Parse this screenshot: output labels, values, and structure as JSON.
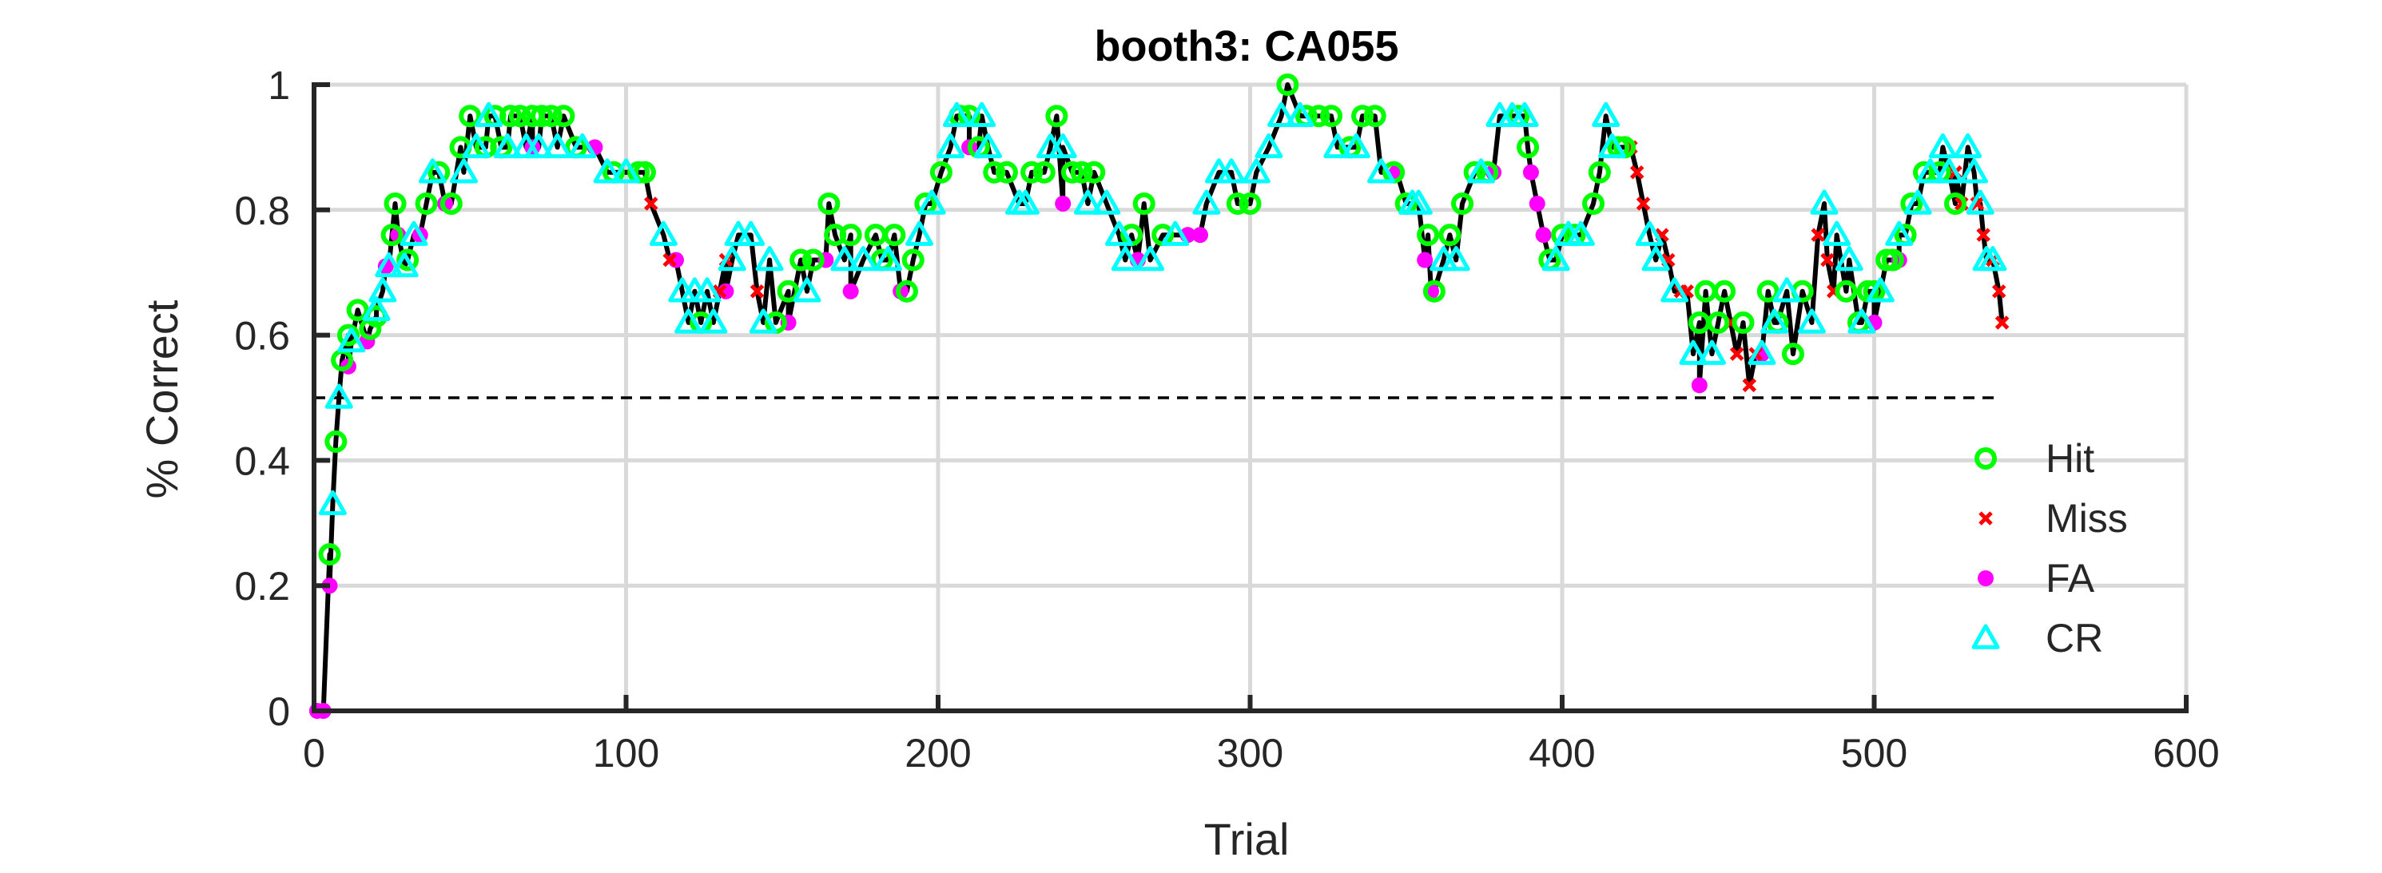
{
  "chart_data": {
    "type": "line",
    "title": "booth3: CA055",
    "xlabel": "Trial",
    "ylabel": "% Correct",
    "xlim": [
      0,
      600
    ],
    "ylim": [
      0,
      1
    ],
    "xticks": [
      0,
      100,
      200,
      300,
      400,
      500,
      600
    ],
    "xtick_labels": [
      "0",
      "100",
      "200",
      "300",
      "400",
      "500",
      "600"
    ],
    "yticks": [
      0,
      0.2,
      0.4,
      0.6,
      0.8,
      1
    ],
    "ytick_labels": [
      "0",
      "0.2",
      "0.4",
      "0.6",
      "0.8",
      "1"
    ],
    "grid": true,
    "legend_position": "lower-right",
    "reference_line": {
      "y": 0.5,
      "x_range": [
        0,
        540
      ],
      "style": "dashed"
    },
    "colors": {
      "line": "#000000",
      "hit": "#00ff00",
      "miss": "#ff0000",
      "fa": "#ff00ff",
      "cr": "#00ffff",
      "axis": "#262626",
      "grid": "#d9d9d9"
    },
    "series": [
      {
        "name": "Hit",
        "marker": "circle",
        "points": [
          [
            5,
            0.25
          ],
          [
            7,
            0.43
          ],
          [
            9,
            0.56
          ],
          [
            11,
            0.6
          ],
          [
            14,
            0.64
          ],
          [
            18,
            0.61
          ],
          [
            20,
            0.63
          ],
          [
            25,
            0.76
          ],
          [
            26,
            0.81
          ],
          [
            30,
            0.72
          ],
          [
            36,
            0.81
          ],
          [
            40,
            0.86
          ],
          [
            44,
            0.81
          ],
          [
            47,
            0.9
          ],
          [
            50,
            0.95
          ],
          [
            55,
            0.9
          ],
          [
            58,
            0.95
          ],
          [
            60,
            0.9
          ],
          [
            63,
            0.95
          ],
          [
            66,
            0.95
          ],
          [
            70,
            0.95
          ],
          [
            73,
            0.95
          ],
          [
            76,
            0.95
          ],
          [
            80,
            0.95
          ],
          [
            84,
            0.9
          ],
          [
            96,
            0.86
          ],
          [
            104,
            0.86
          ],
          [
            106,
            0.86
          ],
          [
            124,
            0.62
          ],
          [
            148,
            0.62
          ],
          [
            152,
            0.67
          ],
          [
            156,
            0.72
          ],
          [
            160,
            0.72
          ],
          [
            165,
            0.81
          ],
          [
            167,
            0.76
          ],
          [
            172,
            0.76
          ],
          [
            180,
            0.76
          ],
          [
            182,
            0.72
          ],
          [
            186,
            0.76
          ],
          [
            190,
            0.67
          ],
          [
            192,
            0.72
          ],
          [
            196,
            0.81
          ],
          [
            201,
            0.86
          ],
          [
            207,
            0.95
          ],
          [
            210,
            0.95
          ],
          [
            213,
            0.9
          ],
          [
            218,
            0.86
          ],
          [
            222,
            0.86
          ],
          [
            230,
            0.86
          ],
          [
            234,
            0.86
          ],
          [
            238,
            0.95
          ],
          [
            243,
            0.86
          ],
          [
            246,
            0.86
          ],
          [
            250,
            0.86
          ],
          [
            262,
            0.76
          ],
          [
            266,
            0.81
          ],
          [
            272,
            0.76
          ],
          [
            296,
            0.81
          ],
          [
            300,
            0.81
          ],
          [
            312,
            1.0
          ],
          [
            318,
            0.95
          ],
          [
            322,
            0.95
          ],
          [
            326,
            0.95
          ],
          [
            332,
            0.9
          ],
          [
            336,
            0.95
          ],
          [
            340,
            0.95
          ],
          [
            346,
            0.86
          ],
          [
            350,
            0.81
          ],
          [
            357,
            0.76
          ],
          [
            359,
            0.67
          ],
          [
            364,
            0.76
          ],
          [
            368,
            0.81
          ],
          [
            372,
            0.86
          ],
          [
            376,
            0.86
          ],
          [
            386,
            0.95
          ],
          [
            389,
            0.9
          ],
          [
            396,
            0.72
          ],
          [
            400,
            0.76
          ],
          [
            404,
            0.76
          ],
          [
            410,
            0.81
          ],
          [
            412,
            0.86
          ],
          [
            418,
            0.9
          ],
          [
            420,
            0.9
          ],
          [
            444,
            0.62
          ],
          [
            446,
            0.67
          ],
          [
            450,
            0.62
          ],
          [
            452,
            0.67
          ],
          [
            458,
            0.62
          ],
          [
            466,
            0.67
          ],
          [
            469,
            0.62
          ],
          [
            474,
            0.57
          ],
          [
            477,
            0.67
          ],
          [
            491,
            0.67
          ],
          [
            495,
            0.62
          ],
          [
            498,
            0.67
          ],
          [
            500,
            0.67
          ],
          [
            504,
            0.72
          ],
          [
            506,
            0.72
          ],
          [
            510,
            0.76
          ],
          [
            512,
            0.81
          ],
          [
            516,
            0.86
          ],
          [
            521,
            0.86
          ],
          [
            526,
            0.81
          ]
        ]
      },
      {
        "name": "Miss",
        "marker": "x",
        "points": [
          [
            108,
            0.81
          ],
          [
            114,
            0.72
          ],
          [
            130,
            0.67
          ],
          [
            132,
            0.72
          ],
          [
            142,
            0.67
          ],
          [
            422,
            0.9
          ],
          [
            424,
            0.86
          ],
          [
            426,
            0.81
          ],
          [
            432,
            0.76
          ],
          [
            434,
            0.72
          ],
          [
            438,
            0.67
          ],
          [
            440,
            0.67
          ],
          [
            454,
            0.62
          ],
          [
            456,
            0.57
          ],
          [
            460,
            0.52
          ],
          [
            462,
            0.57
          ],
          [
            482,
            0.76
          ],
          [
            485,
            0.72
          ],
          [
            487,
            0.67
          ],
          [
            526,
            0.86
          ],
          [
            528,
            0.81
          ],
          [
            533,
            0.81
          ],
          [
            535,
            0.76
          ],
          [
            538,
            0.72
          ],
          [
            540,
            0.67
          ],
          [
            541,
            0.62
          ]
        ]
      },
      {
        "name": "FA",
        "marker": "dot",
        "points": [
          [
            1,
            0.0
          ],
          [
            3,
            0.0
          ],
          [
            5,
            0.2
          ],
          [
            11,
            0.55
          ],
          [
            17,
            0.59
          ],
          [
            23,
            0.71
          ],
          [
            27,
            0.76
          ],
          [
            34,
            0.76
          ],
          [
            42,
            0.81
          ],
          [
            70,
            0.9
          ],
          [
            90,
            0.9
          ],
          [
            116,
            0.72
          ],
          [
            132,
            0.67
          ],
          [
            152,
            0.62
          ],
          [
            164,
            0.72
          ],
          [
            172,
            0.67
          ],
          [
            188,
            0.67
          ],
          [
            210,
            0.9
          ],
          [
            240,
            0.81
          ],
          [
            264,
            0.72
          ],
          [
            280,
            0.76
          ],
          [
            284,
            0.76
          ],
          [
            347,
            0.86
          ],
          [
            356,
            0.72
          ],
          [
            358,
            0.67
          ],
          [
            378,
            0.86
          ],
          [
            390,
            0.86
          ],
          [
            392,
            0.81
          ],
          [
            394,
            0.76
          ],
          [
            444,
            0.52
          ],
          [
            464,
            0.57
          ],
          [
            500,
            0.62
          ],
          [
            508,
            0.72
          ]
        ]
      },
      {
        "name": "CR",
        "marker": "triangle",
        "points": [
          [
            6,
            0.33
          ],
          [
            8,
            0.5
          ],
          [
            12,
            0.59
          ],
          [
            20,
            0.64
          ],
          [
            22,
            0.67
          ],
          [
            24,
            0.71
          ],
          [
            29,
            0.71
          ],
          [
            32,
            0.76
          ],
          [
            38,
            0.86
          ],
          [
            48,
            0.86
          ],
          [
            52,
            0.9
          ],
          [
            56,
            0.95
          ],
          [
            62,
            0.9
          ],
          [
            68,
            0.9
          ],
          [
            72,
            0.9
          ],
          [
            78,
            0.9
          ],
          [
            86,
            0.9
          ],
          [
            94,
            0.86
          ],
          [
            100,
            0.86
          ],
          [
            112,
            0.76
          ],
          [
            118,
            0.67
          ],
          [
            120,
            0.62
          ],
          [
            122,
            0.67
          ],
          [
            126,
            0.67
          ],
          [
            128,
            0.62
          ],
          [
            134,
            0.72
          ],
          [
            136,
            0.76
          ],
          [
            140,
            0.76
          ],
          [
            144,
            0.62
          ],
          [
            146,
            0.72
          ],
          [
            158,
            0.67
          ],
          [
            170,
            0.72
          ],
          [
            176,
            0.72
          ],
          [
            184,
            0.72
          ],
          [
            194,
            0.76
          ],
          [
            198,
            0.81
          ],
          [
            204,
            0.9
          ],
          [
            206,
            0.95
          ],
          [
            214,
            0.95
          ],
          [
            216,
            0.9
          ],
          [
            226,
            0.81
          ],
          [
            228,
            0.81
          ],
          [
            236,
            0.9
          ],
          [
            240,
            0.9
          ],
          [
            248,
            0.81
          ],
          [
            254,
            0.81
          ],
          [
            258,
            0.76
          ],
          [
            260,
            0.72
          ],
          [
            268,
            0.72
          ],
          [
            276,
            0.76
          ],
          [
            286,
            0.81
          ],
          [
            290,
            0.86
          ],
          [
            294,
            0.86
          ],
          [
            302,
            0.86
          ],
          [
            306,
            0.9
          ],
          [
            310,
            0.95
          ],
          [
            316,
            0.95
          ],
          [
            328,
            0.9
          ],
          [
            334,
            0.9
          ],
          [
            342,
            0.86
          ],
          [
            352,
            0.81
          ],
          [
            354,
            0.81
          ],
          [
            362,
            0.72
          ],
          [
            366,
            0.72
          ],
          [
            374,
            0.86
          ],
          [
            380,
            0.95
          ],
          [
            384,
            0.95
          ],
          [
            388,
            0.95
          ],
          [
            398,
            0.72
          ],
          [
            402,
            0.76
          ],
          [
            406,
            0.76
          ],
          [
            414,
            0.95
          ],
          [
            416,
            0.9
          ],
          [
            428,
            0.76
          ],
          [
            430,
            0.72
          ],
          [
            436,
            0.67
          ],
          [
            442,
            0.57
          ],
          [
            448,
            0.57
          ],
          [
            464,
            0.57
          ],
          [
            468,
            0.62
          ],
          [
            472,
            0.67
          ],
          [
            480,
            0.62
          ],
          [
            484,
            0.81
          ],
          [
            488,
            0.76
          ],
          [
            492,
            0.72
          ],
          [
            496,
            0.62
          ],
          [
            502,
            0.67
          ],
          [
            508,
            0.76
          ],
          [
            514,
            0.81
          ],
          [
            518,
            0.86
          ],
          [
            522,
            0.9
          ],
          [
            524,
            0.86
          ],
          [
            530,
            0.9
          ],
          [
            532,
            0.86
          ],
          [
            534,
            0.81
          ],
          [
            536,
            0.72
          ],
          [
            538,
            0.72
          ]
        ]
      }
    ]
  }
}
